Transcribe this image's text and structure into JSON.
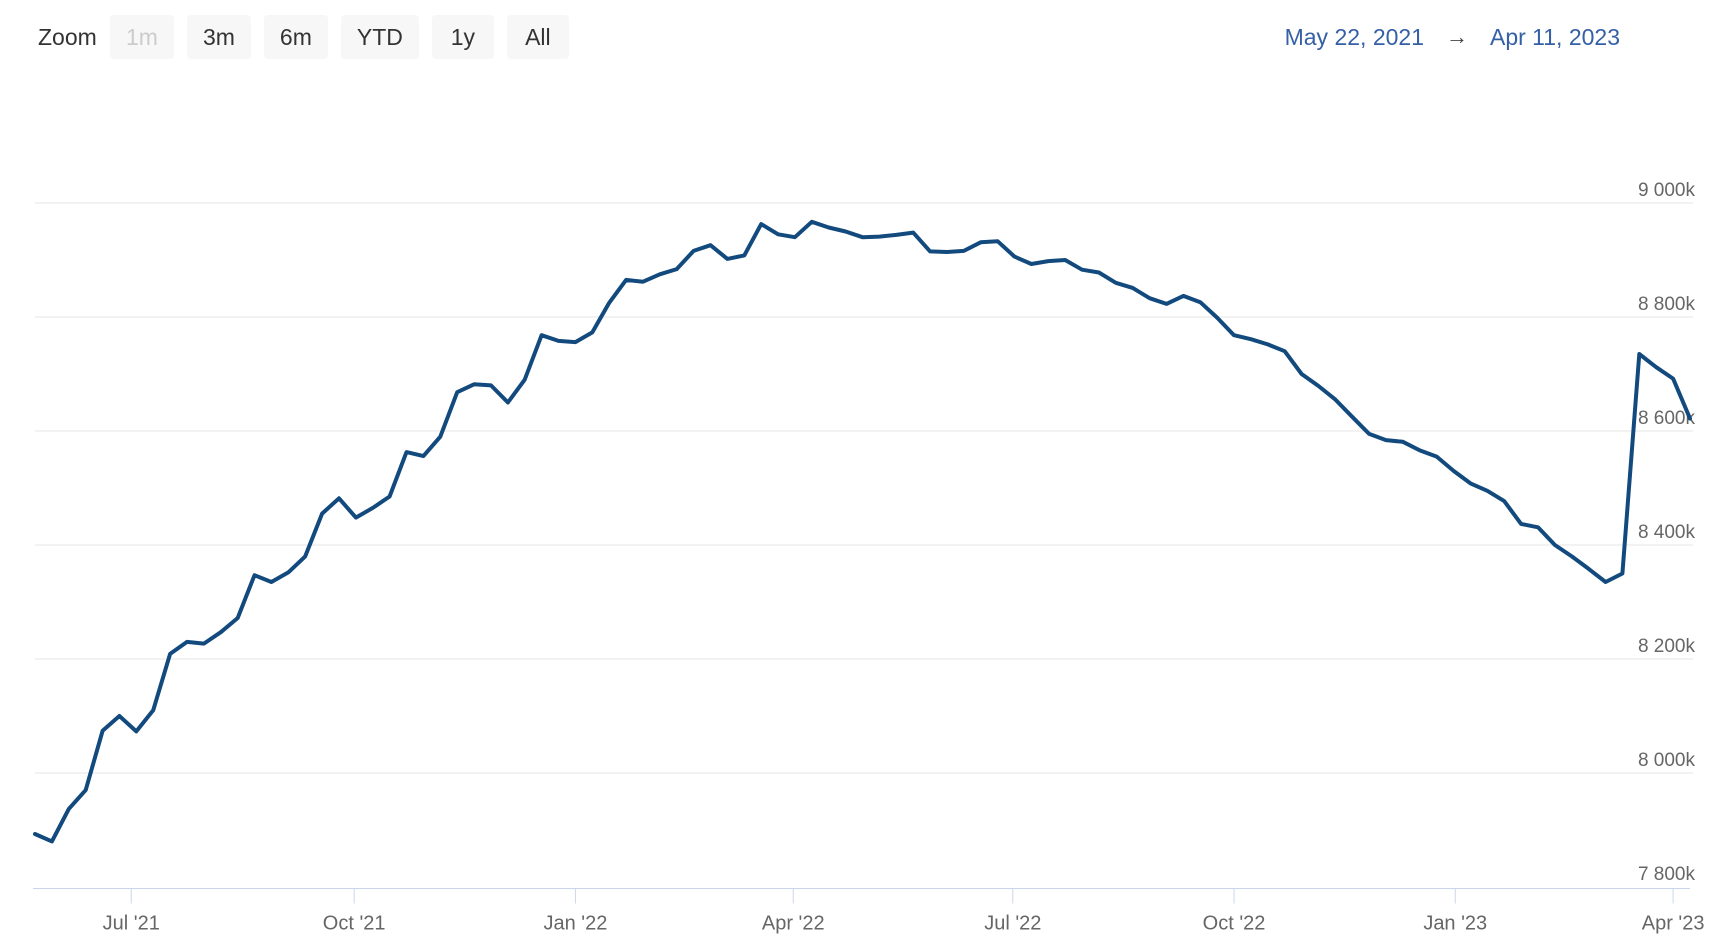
{
  "range_selector": {
    "zoom_label": "Zoom",
    "buttons": [
      {
        "label": "1m",
        "enabled": false
      },
      {
        "label": "3m",
        "enabled": true
      },
      {
        "label": "6m",
        "enabled": true
      },
      {
        "label": "YTD",
        "enabled": true
      },
      {
        "label": "1y",
        "enabled": true
      },
      {
        "label": "All",
        "enabled": true
      }
    ],
    "from_date": "May 22, 2021",
    "arrow": "→",
    "to_date": "Apr 11, 2023"
  },
  "chart_data": {
    "type": "line",
    "title": "",
    "x_start": "May 22, 2021",
    "x_end": "Apr 11, 2023",
    "interval": "weekly",
    "unit": "k (values are thousands; 9000 = 9 000k)",
    "ylim": [
      7800,
      9050
    ],
    "grid": "horizontal gridlines only",
    "legend": "none",
    "series": [
      {
        "name": "value",
        "color": "#134a7e",
        "values": [
          7893,
          7880,
          7937,
          7970,
          8074,
          8100,
          8073,
          8110,
          8209,
          8230,
          8227,
          8247,
          8272,
          8347,
          8335,
          8352,
          8380,
          8455,
          8482,
          8448,
          8465,
          8485,
          8563,
          8556,
          8590,
          8668,
          8682,
          8680,
          8650,
          8690,
          8768,
          8758,
          8756,
          8773,
          8825,
          8865,
          8862,
          8875,
          8884,
          8916,
          8926,
          8902,
          8908,
          8963,
          8945,
          8940,
          8967,
          8957,
          8950,
          8940,
          8941,
          8944,
          8948,
          8915,
          8914,
          8916,
          8931,
          8933,
          8906,
          8893,
          8898,
          8900,
          8883,
          8878,
          8860,
          8851,
          8833,
          8823,
          8837,
          8826,
          8799,
          8768,
          8761,
          8752,
          8740,
          8700,
          8679,
          8655,
          8625,
          8595,
          8584,
          8581,
          8566,
          8555,
          8530,
          8508,
          8495,
          8477,
          8437,
          8431,
          8400,
          8380,
          8358,
          8335,
          8350,
          8735,
          8712,
          8692,
          8622
        ]
      }
    ],
    "y_ticks": [
      {
        "value": 9000,
        "label": "9 000k"
      },
      {
        "value": 8800,
        "label": "8 800k"
      },
      {
        "value": 8600,
        "label": "8 600k"
      },
      {
        "value": 8400,
        "label": "8 400k"
      },
      {
        "value": 8200,
        "label": "8 200k"
      },
      {
        "value": 8000,
        "label": "8 000k"
      },
      {
        "value": 7800,
        "label": "7 800k"
      }
    ],
    "x_ticks": [
      {
        "label": "Jul '21",
        "week": 5.7
      },
      {
        "label": "Oct '21",
        "week": 18.9
      },
      {
        "label": "Jan '22",
        "week": 32.0
      },
      {
        "label": "Apr '22",
        "week": 44.9
      },
      {
        "label": "Jul '22",
        "week": 57.9
      },
      {
        "label": "Oct '22",
        "week": 71.0
      },
      {
        "label": "Jan '23",
        "week": 84.1
      },
      {
        "label": "Apr '23",
        "week": 97.0
      }
    ]
  },
  "colors": {
    "line": "#134a7e",
    "gridline": "#e6e6e6",
    "axis_line": "#ccd6eb",
    "axis_label": "#666666",
    "date_link": "#3560a5",
    "button_bg": "#f7f7f7",
    "button_text": "#333333",
    "button_disabled_text": "#cccccc",
    "background": "#ffffff"
  }
}
